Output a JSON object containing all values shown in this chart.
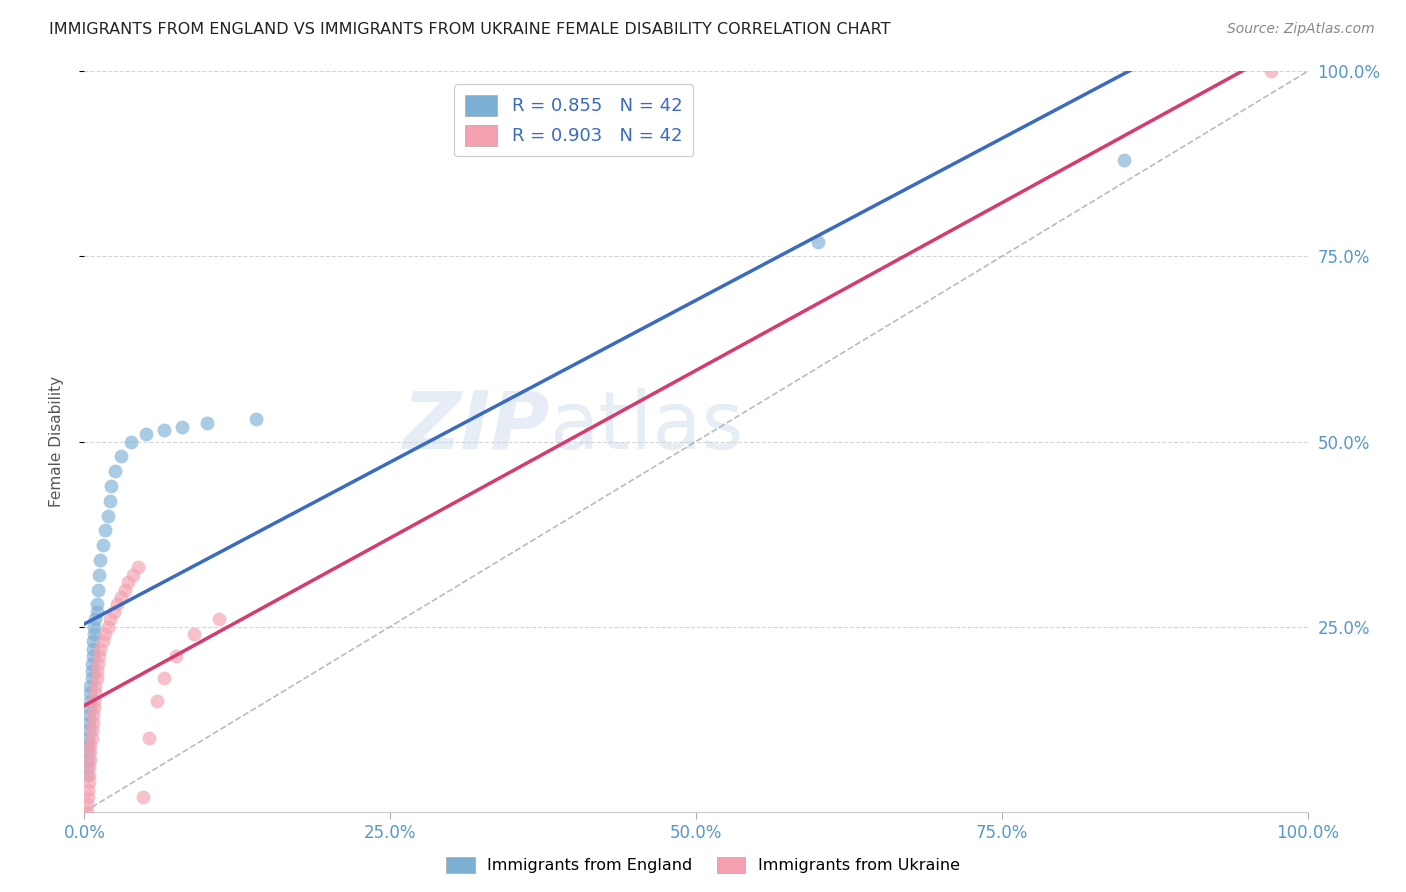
{
  "title": "IMMIGRANTS FROM ENGLAND VS IMMIGRANTS FROM UKRAINE FEMALE DISABILITY CORRELATION CHART",
  "source": "Source: ZipAtlas.com",
  "ylabel": "Female Disability",
  "xlim": [
    0,
    1.0
  ],
  "ylim": [
    0,
    1.0
  ],
  "xticks": [
    0.0,
    0.25,
    0.5,
    0.75,
    1.0
  ],
  "xtick_labels": [
    "0.0%",
    "25.0%",
    "50.0%",
    "75.0%",
    "100.0%"
  ],
  "yticks": [
    0.25,
    0.5,
    0.75,
    1.0
  ],
  "ytick_labels": [
    "25.0%",
    "50.0%",
    "75.0%",
    "100.0%"
  ],
  "england_color": "#7bafd4",
  "ukraine_color": "#f4a0b0",
  "england_line_color": "#3a6bbf",
  "ukraine_line_color": "#d63a6e",
  "england_R": 0.855,
  "ukraine_R": 0.903,
  "N": 42,
  "eng_x": [
    0.002,
    0.002,
    0.003,
    0.003,
    0.003,
    0.003,
    0.004,
    0.004,
    0.004,
    0.005,
    0.005,
    0.005,
    0.005,
    0.006,
    0.006,
    0.006,
    0.007,
    0.007,
    0.007,
    0.008,
    0.008,
    0.009,
    0.01,
    0.01,
    0.011,
    0.012,
    0.013,
    0.015,
    0.017,
    0.019,
    0.021,
    0.022,
    0.025,
    0.03,
    0.038,
    0.05,
    0.065,
    0.08,
    0.1,
    0.14,
    0.6,
    0.85
  ],
  "eng_y": [
    0.05,
    0.06,
    0.07,
    0.08,
    0.09,
    0.1,
    0.11,
    0.12,
    0.13,
    0.14,
    0.15,
    0.16,
    0.17,
    0.18,
    0.19,
    0.2,
    0.21,
    0.22,
    0.23,
    0.24,
    0.25,
    0.26,
    0.27,
    0.28,
    0.3,
    0.32,
    0.34,
    0.36,
    0.38,
    0.4,
    0.42,
    0.44,
    0.46,
    0.48,
    0.5,
    0.51,
    0.515,
    0.52,
    0.525,
    0.53,
    0.77,
    0.88
  ],
  "ukr_x": [
    0.002,
    0.002,
    0.003,
    0.003,
    0.004,
    0.004,
    0.004,
    0.005,
    0.005,
    0.005,
    0.006,
    0.006,
    0.007,
    0.007,
    0.008,
    0.008,
    0.009,
    0.009,
    0.01,
    0.01,
    0.011,
    0.012,
    0.013,
    0.015,
    0.017,
    0.019,
    0.021,
    0.024,
    0.027,
    0.03,
    0.033,
    0.036,
    0.04,
    0.044,
    0.048,
    0.053,
    0.059,
    0.065,
    0.075,
    0.09,
    0.11,
    0.97
  ],
  "ukr_y": [
    0.0,
    0.01,
    0.02,
    0.03,
    0.04,
    0.05,
    0.06,
    0.07,
    0.08,
    0.09,
    0.1,
    0.11,
    0.12,
    0.13,
    0.14,
    0.15,
    0.16,
    0.17,
    0.18,
    0.19,
    0.2,
    0.21,
    0.22,
    0.23,
    0.24,
    0.25,
    0.26,
    0.27,
    0.28,
    0.29,
    0.3,
    0.31,
    0.32,
    0.33,
    0.02,
    0.1,
    0.15,
    0.18,
    0.21,
    0.24,
    0.26,
    1.0
  ],
  "watermark_zip": "ZIP",
  "watermark_atlas": "atlas",
  "bg_color": "#ffffff",
  "grid_color": "#cccccc",
  "title_color": "#222222",
  "tick_color": "#5599cc"
}
